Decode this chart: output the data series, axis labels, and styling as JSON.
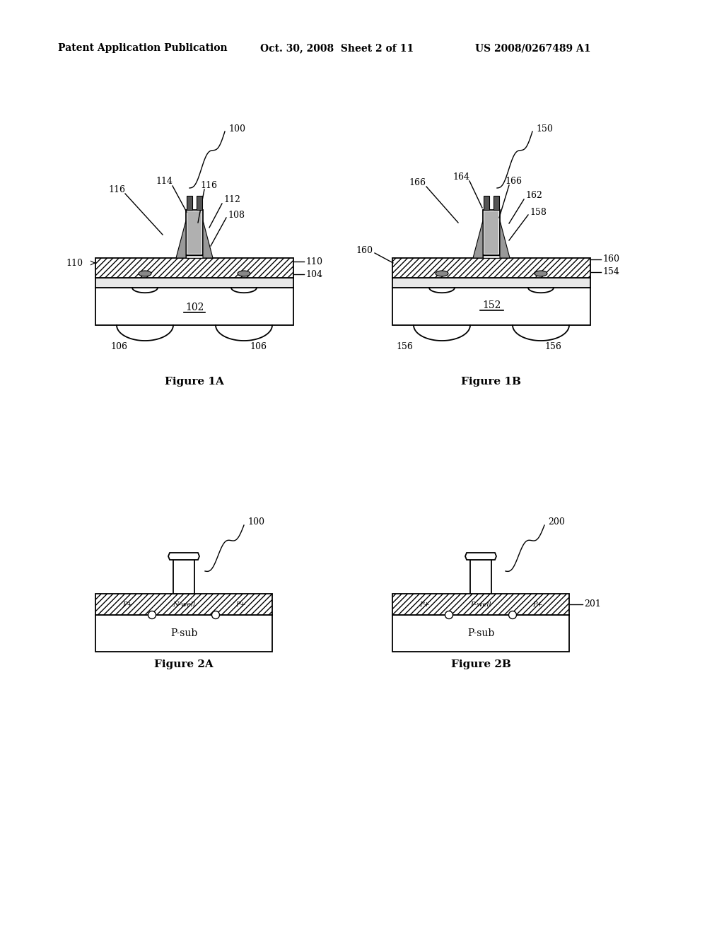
{
  "bg_color": "#ffffff",
  "header_left": "Patent Application Publication",
  "header_mid": "Oct. 30, 2008  Sheet 2 of 11",
  "header_right": "US 2008/0267489 A1",
  "fig1a_label": "Figure 1A",
  "fig1b_label": "Figure 1B",
  "fig2a_label": "Figure 2A",
  "fig2b_label": "Figure 2B"
}
